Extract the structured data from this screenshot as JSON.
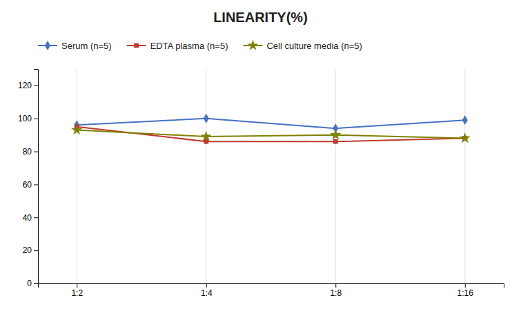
{
  "chart_data": {
    "type": "line",
    "title": "LINEARITY(%)",
    "categories": [
      "1:2",
      "1:4",
      "1:8",
      "1:16"
    ],
    "series": [
      {
        "name": "Serum (n=5)",
        "color": "#4472C4",
        "marker": "diamond",
        "values": [
          96,
          100,
          94,
          99
        ]
      },
      {
        "name": "EDTA plasma (n=5)",
        "color": "#C0392B",
        "marker": "square",
        "values": [
          95,
          86,
          86,
          88
        ]
      },
      {
        "name": "Cell culture media (n=5)",
        "color": "#808000",
        "marker": "star",
        "values": [
          93,
          89,
          90,
          88
        ]
      }
    ],
    "ylim": [
      0,
      130
    ],
    "yticks": [
      0,
      20,
      40,
      60,
      80,
      100,
      120
    ],
    "grid": true,
    "legend": "top-left"
  }
}
